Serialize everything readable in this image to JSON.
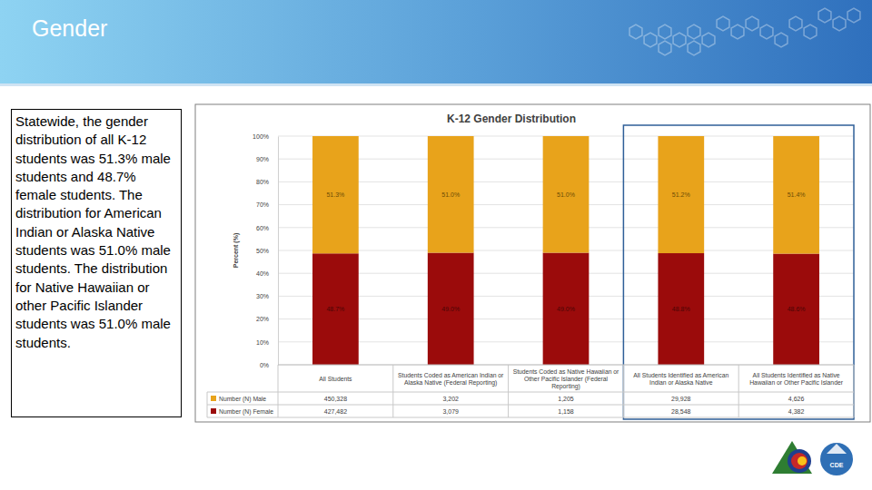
{
  "slide": {
    "title": "Gender",
    "body": "Statewide, the gender distribution of all K-12 students was 51.3% male students and 48.7% female students. The distribution for American Indian or Alaska Native students was 51.0% male students. The distribution for Native Hawaiian or other Pacific Islander students was 51.0% male students."
  },
  "logo": {
    "text": "CDE"
  },
  "chart_data": {
    "type": "bar",
    "title": "K-12 Gender Distribution",
    "y_label": "Percent (%)",
    "stacked": true,
    "data_labels": true,
    "grid": true,
    "legend": "bottom",
    "categories": [
      "All Students",
      "Students Coded as American Indian or Alaska Native (Federal Reporting)",
      "Students Coded as Native Hawaiian or Other Pacific Islander (Federal Reporting)",
      "All Students Identified as American Indian or Alaska Native",
      "All Students Identified as Native Hawaiian or Other Pacific Islander"
    ],
    "series": [
      {
        "name": "Number (N) Male",
        "color": "#e8a31b",
        "values": [
          51.3,
          51.0,
          51.0,
          51.2,
          51.4
        ],
        "value_labels": [
          "51.3%",
          "51.0%",
          "51.0%",
          "51.2%",
          "51.4%"
        ],
        "counts": [
          450328,
          3202,
          1205,
          29928,
          4626
        ]
      },
      {
        "name": "Number (N) Female",
        "color": "#9b0b0b",
        "values": [
          48.7,
          49.0,
          49.0,
          48.8,
          48.6
        ],
        "value_labels": [
          "48.7%",
          "49.0%",
          "49.0%",
          "48.8%",
          "48.6%"
        ],
        "counts": [
          427482,
          3079,
          1158,
          28548,
          4382
        ]
      }
    ],
    "ylim": [
      0,
      100
    ],
    "yticks": [
      {
        "value": 0,
        "label": "0%"
      },
      {
        "value": 10,
        "label": "10%"
      },
      {
        "value": 20,
        "label": "20%"
      },
      {
        "value": 30,
        "label": "30%"
      },
      {
        "value": 40,
        "label": "40%"
      },
      {
        "value": 50,
        "label": "50%"
      },
      {
        "value": 60,
        "label": "60%"
      },
      {
        "value": 70,
        "label": "70%"
      },
      {
        "value": 80,
        "label": "80%"
      },
      {
        "value": 90,
        "label": "90%"
      },
      {
        "value": 100,
        "label": "100%"
      }
    ]
  }
}
